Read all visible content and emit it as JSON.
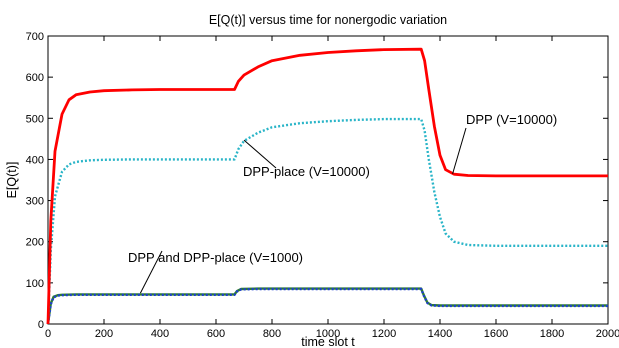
{
  "chart_data": {
    "type": "line",
    "title": "E[Q(t)] versus time for nonergodic variation",
    "xlabel": "time slot t",
    "ylabel": "E[Q(t)]",
    "xlim": [
      0,
      2000
    ],
    "ylim": [
      0,
      700
    ],
    "xticks": [
      0,
      200,
      400,
      600,
      800,
      1000,
      1200,
      1400,
      1600,
      1800,
      2000
    ],
    "yticks": [
      0,
      100,
      200,
      300,
      400,
      500,
      600,
      700
    ],
    "grid": false,
    "legend": "none",
    "series": [
      {
        "color": "#ff0000",
        "style": "solid",
        "x": [
          0,
          10,
          25,
          50,
          75,
          100,
          150,
          200,
          300,
          400,
          500,
          600,
          666,
          680,
          700,
          750,
          800,
          900,
          1000,
          1100,
          1200,
          1333,
          1345,
          1360,
          1380,
          1400,
          1420,
          1450,
          1500,
          1600,
          1800,
          2000
        ],
        "y": [
          0,
          250,
          420,
          510,
          545,
          557,
          564,
          567,
          569,
          570,
          570,
          570,
          570,
          590,
          605,
          625,
          640,
          653,
          660,
          664,
          667,
          668,
          640,
          570,
          480,
          410,
          375,
          364,
          361,
          360,
          360,
          360
        ]
      },
      {
        "color": "#2ab5c8",
        "style": "dotted",
        "x": [
          0,
          10,
          25,
          50,
          75,
          100,
          150,
          200,
          300,
          400,
          500,
          600,
          666,
          680,
          700,
          750,
          800,
          900,
          1000,
          1100,
          1200,
          1333,
          1345,
          1360,
          1380,
          1400,
          1420,
          1450,
          1500,
          1600,
          1800,
          2000
        ],
        "y": [
          0,
          180,
          310,
          370,
          388,
          394,
          398,
          399,
          400,
          400,
          400,
          400,
          400,
          425,
          445,
          465,
          478,
          488,
          493,
          496,
          498,
          498,
          470,
          400,
          320,
          260,
          220,
          200,
          192,
          190,
          190,
          190
        ]
      },
      {
        "color": "#2e7d2e",
        "style": "solid",
        "x": [
          0,
          10,
          20,
          35,
          50,
          100,
          300,
          600,
          666,
          675,
          690,
          750,
          1000,
          1333,
          1342,
          1355,
          1370,
          1400,
          1600,
          2000
        ],
        "y": [
          0,
          50,
          66,
          70,
          71,
          72,
          72,
          72,
          72,
          80,
          85,
          86,
          86,
          86,
          70,
          52,
          46,
          45,
          45,
          45
        ]
      },
      {
        "color": "#1f3fd0",
        "style": "dotted",
        "x": [
          0,
          10,
          20,
          35,
          50,
          100,
          300,
          600,
          666,
          675,
          690,
          750,
          1000,
          1333,
          1342,
          1355,
          1370,
          1400,
          1600,
          2000
        ],
        "y": [
          0,
          48,
          65,
          69,
          70,
          71,
          71,
          71,
          71,
          79,
          84,
          85,
          85,
          85,
          69,
          51,
          45,
          44,
          44,
          44
        ]
      }
    ],
    "annotations": [
      {
        "text": "DPP (V=10000)",
        "points_to": [
          1445,
          365
        ]
      },
      {
        "text": "DPP-place (V=10000)",
        "points_to": [
          700,
          447
        ]
      },
      {
        "text": "DPP and DPP-place (V=1000)",
        "points_to": [
          330,
          75
        ]
      }
    ]
  }
}
